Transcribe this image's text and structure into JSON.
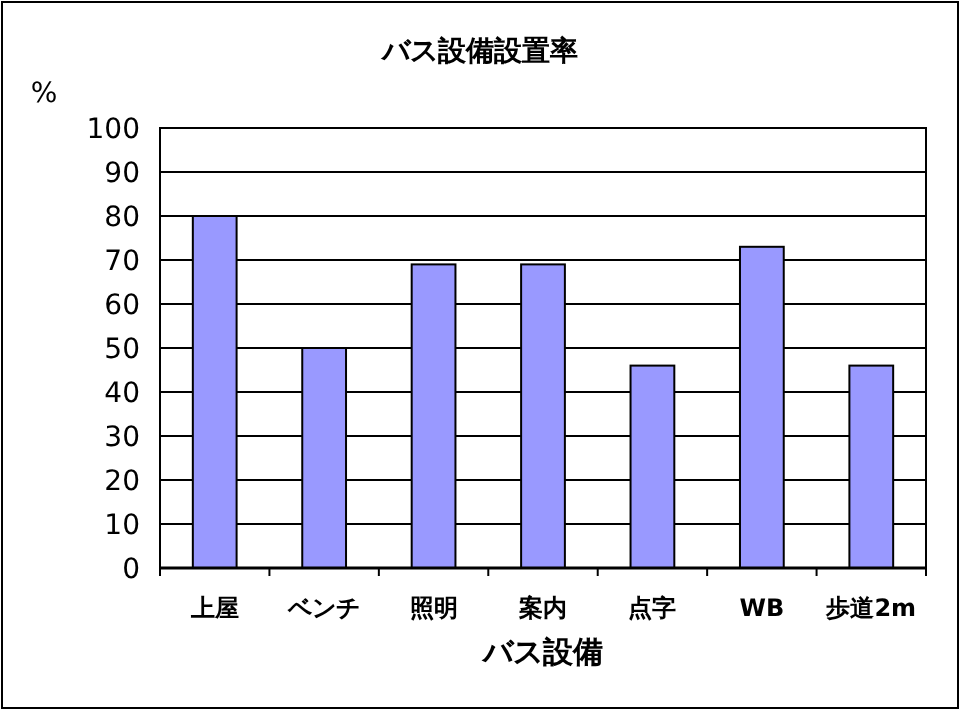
{
  "chart_data": {
    "type": "bar",
    "title": "バス設備設置率",
    "xlabel": "バス設備",
    "ylabel": "%",
    "categories": [
      "上屋",
      "ベンチ",
      "照明",
      "案内",
      "点字",
      "WB",
      "歩道2m"
    ],
    "values": [
      80,
      50,
      69,
      69,
      46,
      73,
      46
    ],
    "color": "#9999ff",
    "ylim": [
      0,
      100
    ],
    "yticks": [
      0,
      10,
      20,
      30,
      40,
      50,
      60,
      70,
      80,
      90,
      100
    ],
    "grid": "y"
  }
}
